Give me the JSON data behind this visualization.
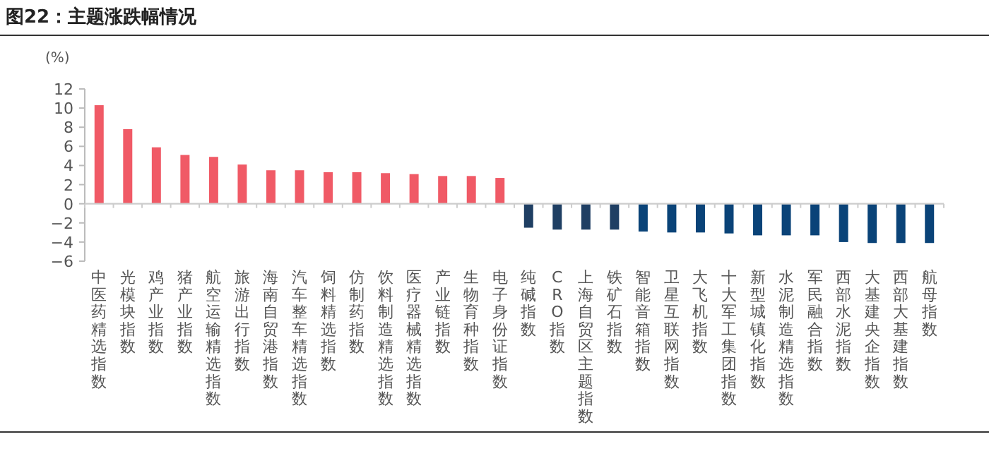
{
  "chart_data": {
    "type": "bar",
    "title": "图22：主题涨跌幅情况",
    "ylabel": "(%)",
    "categories": [
      "中医药精选指数",
      "光模块指数",
      "鸡产业指数",
      "猪产业指数",
      "航空运输精选指数",
      "旅游出行指数",
      "海南自贸港指数",
      "汽车整车精选指数",
      "饲料精选指数",
      "仿制药指数",
      "饮料制造精选指数",
      "医疗器械精选指数",
      "产业链指数",
      "生物育种指数",
      "电子身份证指数",
      "纯碱指数",
      "CRO指数",
      "上海自贸区主题指数",
      "铁矿石指数",
      "智能音箱指数",
      "卫星互联网指数",
      "大飞机指数",
      "十大军工集团指数",
      "新型城镇化指数",
      "水泥制造精选指数",
      "军民融合指数",
      "西部水泥指数",
      "大基建央企指数",
      "西部大基建指数",
      "航母指数"
    ],
    "values": [
      10.3,
      7.8,
      5.9,
      5.1,
      4.9,
      4.1,
      3.5,
      3.5,
      3.3,
      3.3,
      3.2,
      3.1,
      2.9,
      2.9,
      2.7,
      -2.5,
      -2.7,
      -2.7,
      -2.7,
      -2.9,
      -3.0,
      -3.0,
      -3.1,
      -3.3,
      -3.3,
      -3.3,
      -4.0,
      -4.1,
      -4.1,
      -4.1
    ],
    "colors": [
      "#f05a66",
      "#f05a66",
      "#f05a66",
      "#f05a66",
      "#f05a66",
      "#f05a66",
      "#f05a66",
      "#f05a66",
      "#f05a66",
      "#f05a66",
      "#f05a66",
      "#f05a66",
      "#f05a66",
      "#f05a66",
      "#f05a66",
      "#1f3f63",
      "#1f3f63",
      "#1f3f63",
      "#1f3f63",
      "#0a4378",
      "#0a4378",
      "#0a4378",
      "#0a4378",
      "#0a4378",
      "#0a4378",
      "#0a4378",
      "#0a4378",
      "#0a4378",
      "#0a4378",
      "#0a4378"
    ],
    "ylim": [
      -6,
      12
    ],
    "yticks": [
      -6,
      -4,
      -2,
      0,
      2,
      4,
      6,
      8,
      10,
      12
    ]
  }
}
